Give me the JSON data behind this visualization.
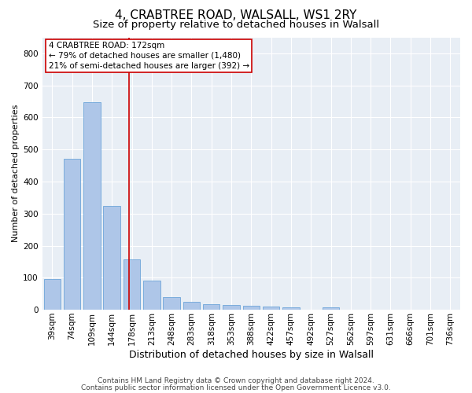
{
  "title": "4, CRABTREE ROAD, WALSALL, WS1 2RY",
  "subtitle": "Size of property relative to detached houses in Walsall",
  "xlabel": "Distribution of detached houses by size in Walsall",
  "ylabel": "Number of detached properties",
  "categories": [
    "39sqm",
    "74sqm",
    "109sqm",
    "144sqm",
    "178sqm",
    "213sqm",
    "248sqm",
    "283sqm",
    "318sqm",
    "353sqm",
    "388sqm",
    "422sqm",
    "457sqm",
    "492sqm",
    "527sqm",
    "562sqm",
    "597sqm",
    "631sqm",
    "666sqm",
    "701sqm",
    "736sqm"
  ],
  "values": [
    95,
    470,
    648,
    325,
    157,
    92,
    40,
    25,
    18,
    15,
    13,
    10,
    8,
    0,
    8,
    0,
    0,
    0,
    0,
    0,
    0
  ],
  "bar_color": "#aec6e8",
  "bar_edge_color": "#5b9bd5",
  "vline_pos": 3.87,
  "vline_color": "#cc0000",
  "annotation_line1": "4 CRABTREE ROAD: 172sqm",
  "annotation_line2": "← 79% of detached houses are smaller (1,480)",
  "annotation_line3": "21% of semi-detached houses are larger (392) →",
  "annotation_box_color": "#ffffff",
  "annotation_box_edge_color": "#cc0000",
  "ylim": [
    0,
    850
  ],
  "yticks": [
    0,
    100,
    200,
    300,
    400,
    500,
    600,
    700,
    800
  ],
  "title_fontsize": 11,
  "subtitle_fontsize": 9.5,
  "xlabel_fontsize": 9,
  "ylabel_fontsize": 8,
  "tick_fontsize": 7.5,
  "annotation_fontsize": 7.5,
  "footer_line1": "Contains HM Land Registry data © Crown copyright and database right 2024.",
  "footer_line2": "Contains public sector information licensed under the Open Government Licence v3.0.",
  "footer_fontsize": 6.5,
  "bg_color": "#ffffff",
  "plot_bg_color": "#e8eef5",
  "grid_color": "#ffffff"
}
